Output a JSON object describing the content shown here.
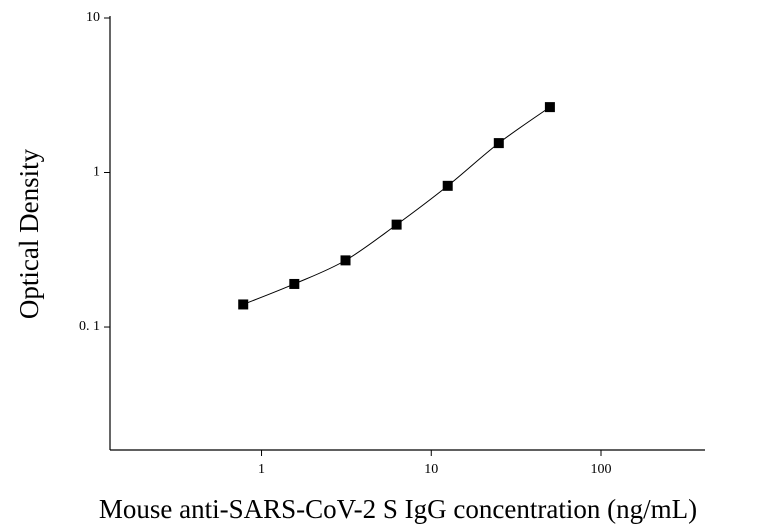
{
  "chart_data": {
    "type": "scatter",
    "log_x": true,
    "log_y": true,
    "x_label": "Mouse anti-SARS-CoV-2 S IgG concentration (ng/mL)",
    "y_label": "Optical Density",
    "x": [
      0.78,
      1.56,
      3.125,
      6.25,
      12.5,
      25,
      50
    ],
    "series": [
      {
        "color": "#000000",
        "values": [
          0.14,
          0.19,
          0.27,
          0.46,
          0.82,
          1.55,
          2.65
        ]
      }
    ],
    "xlim": [
      0.128,
      410
    ],
    "ylim": [
      0.016,
      10
    ],
    "xticks": [
      1,
      10,
      100
    ],
    "yticks": [
      {
        "value": 0.1,
        "label": "0. 1"
      },
      1,
      10
    ],
    "fit_curve": true
  }
}
